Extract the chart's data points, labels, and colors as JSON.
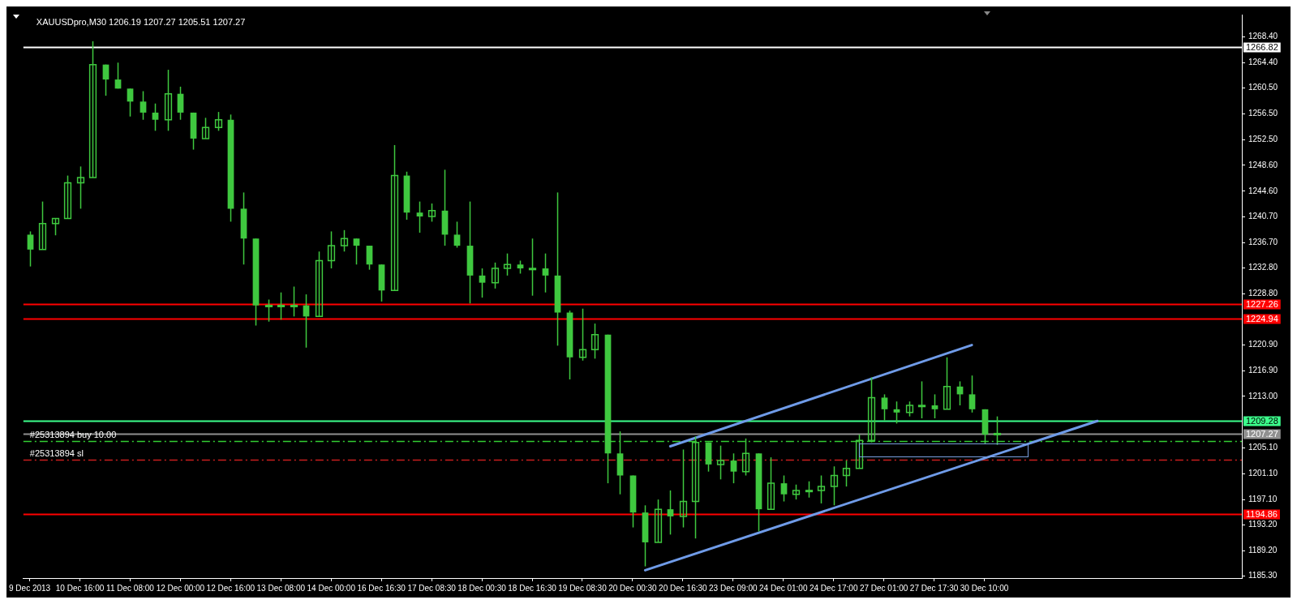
{
  "chart_data": {
    "type": "candlestick",
    "title": "XAUUSDpro,M30 1206.19 1207.27 1205.51 1207.27",
    "color": "#3fc83f",
    "categories": [
      "9 Dec 2013",
      null,
      null,
      null,
      "10 Dec 16:00",
      null,
      null,
      null,
      "11 Dec 08:00",
      null,
      null,
      null,
      "12 Dec 00:00",
      null,
      null,
      null,
      "12 Dec 16:00",
      null,
      null,
      null,
      "13 Dec 08:00",
      null,
      null,
      null,
      "14 Dec 00:00",
      null,
      null,
      null,
      "16 Dec 16:30",
      null,
      null,
      null,
      "17 Dec 08:30",
      null,
      null,
      null,
      "18 Dec 00:30",
      null,
      null,
      null,
      "18 Dec 16:30",
      null,
      null,
      null,
      "19 Dec 08:30",
      null,
      null,
      null,
      "20 Dec 00:30",
      null,
      null,
      null,
      "20 Dec 16:30",
      null,
      null,
      null,
      "23 Dec 09:00",
      null,
      null,
      null,
      "24 Dec 01:00",
      null,
      null,
      null,
      "24 Dec 17:00",
      null,
      null,
      null,
      "27 Dec 01:00",
      null,
      null,
      null,
      "27 Dec 17:30",
      null,
      null,
      null,
      "30 Dec 10:00",
      null,
      null,
      null,
      null,
      null,
      null,
      null,
      null,
      null,
      null,
      null,
      null,
      null,
      null,
      null,
      null,
      null,
      null,
      null,
      null
    ],
    "ohlc": [
      [
        1237.9,
        1238.4,
        1233.0,
        1235.6
      ],
      [
        1235.6,
        1243.0,
        1235.6,
        1239.6
      ],
      [
        1239.6,
        1240.4,
        1237.8,
        1240.4
      ],
      [
        1240.4,
        1247.0,
        1240.4,
        1245.9
      ],
      [
        1245.9,
        1248.4,
        1241.9,
        1246.7
      ],
      [
        1246.7,
        1267.7,
        1246.7,
        1264.1
      ],
      [
        1264.1,
        1264.1,
        1259.3,
        1261.8
      ],
      [
        1261.8,
        1264.4,
        1260.4,
        1260.4
      ],
      [
        1260.4,
        1260.4,
        1256.1,
        1258.4
      ],
      [
        1258.4,
        1260.0,
        1255.6,
        1256.7
      ],
      [
        1256.7,
        1258.1,
        1253.9,
        1255.6
      ],
      [
        1255.6,
        1263.3,
        1253.9,
        1259.6
      ],
      [
        1259.6,
        1260.7,
        1255.6,
        1256.7
      ],
      [
        1256.7,
        1256.7,
        1251.0,
        1252.7
      ],
      [
        1252.7,
        1255.9,
        1252.7,
        1254.4
      ],
      [
        1254.4,
        1256.8,
        1253.9,
        1255.6
      ],
      [
        1255.6,
        1256.4,
        1239.9,
        1241.9
      ],
      [
        1241.9,
        1244.4,
        1233.3,
        1237.3
      ],
      [
        1237.3,
        1237.3,
        1223.9,
        1227.0
      ],
      [
        1227.0,
        1227.9,
        1224.5,
        1227.0
      ],
      [
        1227.0,
        1229.0,
        1224.8,
        1227.0
      ],
      [
        1227.0,
        1229.9,
        1225.3,
        1227.0
      ],
      [
        1227.0,
        1228.7,
        1220.5,
        1225.3
      ],
      [
        1225.3,
        1235.3,
        1225.3,
        1233.9
      ],
      [
        1233.9,
        1238.4,
        1232.7,
        1236.2
      ],
      [
        1236.2,
        1238.6,
        1235.3,
        1237.3
      ],
      [
        1237.3,
        1237.3,
        1233.3,
        1236.2
      ],
      [
        1236.2,
        1236.2,
        1232.5,
        1233.3
      ],
      [
        1233.3,
        1233.3,
        1227.6,
        1229.3
      ],
      [
        1229.3,
        1251.7,
        1229.3,
        1247.0
      ],
      [
        1247.0,
        1247.6,
        1240.2,
        1241.3
      ],
      [
        1241.3,
        1243.0,
        1238.2,
        1240.7
      ],
      [
        1240.7,
        1242.7,
        1239.9,
        1241.6
      ],
      [
        1241.6,
        1247.9,
        1236.2,
        1237.9
      ],
      [
        1237.9,
        1239.9,
        1235.9,
        1236.2
      ],
      [
        1236.2,
        1243.0,
        1227.3,
        1231.6
      ],
      [
        1231.6,
        1232.7,
        1228.2,
        1230.5
      ],
      [
        1230.5,
        1233.6,
        1229.6,
        1232.7
      ],
      [
        1232.7,
        1235.0,
        1231.6,
        1233.3
      ],
      [
        1233.3,
        1233.9,
        1231.9,
        1232.7
      ],
      [
        1232.7,
        1237.3,
        1228.5,
        1232.7
      ],
      [
        1232.7,
        1235.0,
        1229.0,
        1231.6
      ],
      [
        1231.6,
        1244.4,
        1220.8,
        1225.9
      ],
      [
        1225.9,
        1226.2,
        1215.6,
        1219.0
      ],
      [
        1219.0,
        1226.5,
        1218.5,
        1220.2
      ],
      [
        1220.2,
        1224.2,
        1218.8,
        1222.5
      ],
      [
        1222.5,
        1222.5,
        1199.6,
        1204.2
      ],
      [
        1204.2,
        1207.6,
        1197.9,
        1200.8
      ],
      [
        1200.8,
        1200.8,
        1192.8,
        1195.1
      ],
      [
        1195.1,
        1196.2,
        1186.8,
        1190.5
      ],
      [
        1190.5,
        1197.1,
        1190.5,
        1195.6
      ],
      [
        1195.6,
        1198.5,
        1191.7,
        1194.5
      ],
      [
        1194.5,
        1204.8,
        1192.8,
        1196.8
      ],
      [
        1196.8,
        1206.8,
        1191.1,
        1205.9
      ],
      [
        1205.9,
        1205.9,
        1201.4,
        1202.5
      ],
      [
        1202.5,
        1205.4,
        1200.2,
        1203.1
      ],
      [
        1203.1,
        1204.2,
        1199.6,
        1201.4
      ],
      [
        1201.4,
        1206.5,
        1200.8,
        1204.2
      ],
      [
        1204.2,
        1204.2,
        1192.2,
        1195.6
      ],
      [
        1195.6,
        1203.6,
        1195.6,
        1199.6
      ],
      [
        1199.6,
        1200.8,
        1196.8,
        1197.9
      ],
      [
        1197.9,
        1199.4,
        1197.1,
        1198.5
      ],
      [
        1198.5,
        1199.9,
        1197.4,
        1198.5
      ],
      [
        1198.5,
        1200.8,
        1196.5,
        1199.1
      ],
      [
        1199.1,
        1202.2,
        1196.2,
        1200.8
      ],
      [
        1200.8,
        1203.1,
        1199.1,
        1201.9
      ],
      [
        1201.9,
        1207.1,
        1201.9,
        1206.2
      ],
      [
        1206.2,
        1215.9,
        1205.9,
        1212.8
      ],
      [
        1212.8,
        1213.3,
        1209.3,
        1211.0
      ],
      [
        1211.0,
        1212.2,
        1208.8,
        1210.5
      ],
      [
        1210.5,
        1212.2,
        1209.9,
        1211.6
      ],
      [
        1211.6,
        1215.3,
        1209.6,
        1211.6
      ],
      [
        1211.6,
        1213.3,
        1209.6,
        1211.0
      ],
      [
        1211.0,
        1219.0,
        1211.0,
        1214.5
      ],
      [
        1214.5,
        1215.3,
        1211.6,
        1213.3
      ],
      [
        1213.3,
        1216.2,
        1210.5,
        1211.0
      ],
      [
        1211.0,
        1211.0,
        1205.6,
        1207.1
      ],
      [
        1207.1,
        1209.9,
        1205.51,
        1207.27
      ],
      null,
      null,
      null,
      null,
      null,
      null,
      null,
      null,
      null,
      null,
      null,
      null,
      null,
      null,
      null,
      null,
      null,
      null,
      null
    ],
    "ylim": [
      1185.0,
      1271.8
    ],
    "yticks": [
      {
        "value": 1268.4,
        "label": "1268.40"
      },
      {
        "value": 1264.4,
        "label": "1264.40"
      },
      {
        "value": 1260.5,
        "label": "1260.50"
      },
      {
        "value": 1256.5,
        "label": "1256.50"
      },
      {
        "value": 1252.5,
        "label": "1252.50"
      },
      {
        "value": 1248.6,
        "label": "1248.60"
      },
      {
        "value": 1244.6,
        "label": "1244.60"
      },
      {
        "value": 1240.7,
        "label": "1240.70"
      },
      {
        "value": 1236.7,
        "label": "1236.70"
      },
      {
        "value": 1232.8,
        "label": "1232.80"
      },
      {
        "value": 1228.8,
        "label": "1228.80"
      },
      {
        "value": 1220.9,
        "label": "1220.90"
      },
      {
        "value": 1216.9,
        "label": "1216.90"
      },
      {
        "value": 1213,
        "label": "1213.00"
      },
      {
        "value": 1205.1,
        "label": "1205.10"
      },
      {
        "value": 1201.1,
        "label": "1201.10"
      },
      {
        "value": 1197.1,
        "label": "1197.10"
      },
      {
        "value": 1193.2,
        "label": "1193.20"
      },
      {
        "value": 1189.2,
        "label": "1189.20"
      },
      {
        "value": 1185.3,
        "label": "1185.30"
      }
    ],
    "series": [
      {
        "type": "line",
        "values": [
          null,
          null,
          null,
          null,
          null,
          null,
          null,
          null,
          null,
          null,
          null,
          null,
          null,
          null,
          null,
          null,
          null,
          null,
          null,
          null,
          null,
          null,
          null,
          null,
          null,
          null,
          null,
          null,
          null,
          null,
          null,
          null,
          null,
          null,
          null,
          null,
          null,
          null,
          null,
          null,
          null,
          null,
          null,
          null,
          null,
          null,
          null,
          null,
          null,
          null,
          null,
          1205.3,
          null,
          null,
          null,
          null,
          null,
          null,
          null,
          null,
          null,
          null,
          null,
          null,
          null,
          null,
          null,
          null,
          null,
          null,
          null,
          null,
          null,
          null,
          null,
          1220.9,
          null,
          null,
          null,
          null,
          null,
          null,
          null,
          null,
          null,
          null,
          null,
          null,
          null,
          null,
          null,
          null,
          null,
          null,
          null,
          null,
          null
        ],
        "color": "#6f9be8"
      },
      {
        "type": "line",
        "values": [
          null,
          null,
          null,
          null,
          null,
          null,
          null,
          null,
          null,
          null,
          null,
          null,
          null,
          null,
          null,
          null,
          null,
          null,
          null,
          null,
          null,
          null,
          null,
          null,
          null,
          null,
          null,
          null,
          null,
          null,
          null,
          null,
          null,
          null,
          null,
          null,
          null,
          null,
          null,
          null,
          null,
          null,
          null,
          null,
          null,
          null,
          null,
          null,
          null,
          1186.2,
          null,
          null,
          null,
          null,
          null,
          null,
          null,
          null,
          null,
          null,
          null,
          null,
          null,
          null,
          null,
          null,
          null,
          null,
          null,
          null,
          null,
          null,
          null,
          null,
          null,
          null,
          null,
          null,
          null,
          null,
          null,
          null,
          null,
          null,
          null,
          1209.2,
          null,
          null,
          null,
          null,
          null,
          null,
          null,
          null,
          null,
          null,
          null
        ],
        "color": "#6f9be8"
      }
    ],
    "ref_lines": [
      {
        "axis": "y",
        "value": 1266.82,
        "label": "1266.82",
        "color": "#ffffff"
      },
      {
        "axis": "y",
        "value": 1227.26,
        "label": "1227.26",
        "color": "#ff0000"
      },
      {
        "axis": "y",
        "value": 1224.94,
        "label": "1224.94",
        "color": "#ff0000"
      },
      {
        "axis": "y",
        "value": 1209.28,
        "label": "1209.28",
        "color": "#3cff8c"
      },
      {
        "axis": "y",
        "value": 1207.27,
        "label": "1207.27",
        "color": "#909090"
      },
      {
        "axis": "y",
        "value": 1206.1,
        "label": "#25313894 buy 10.00",
        "color": "#32cd32",
        "line_style": "dashed"
      },
      {
        "axis": "y",
        "value": 1203.2,
        "label": "#25313894 sl",
        "color": "#c81e1e",
        "line_style": "dashed"
      },
      {
        "axis": "y",
        "value": 1194.86,
        "label": "1194.86",
        "color": "#ff0000"
      }
    ]
  }
}
